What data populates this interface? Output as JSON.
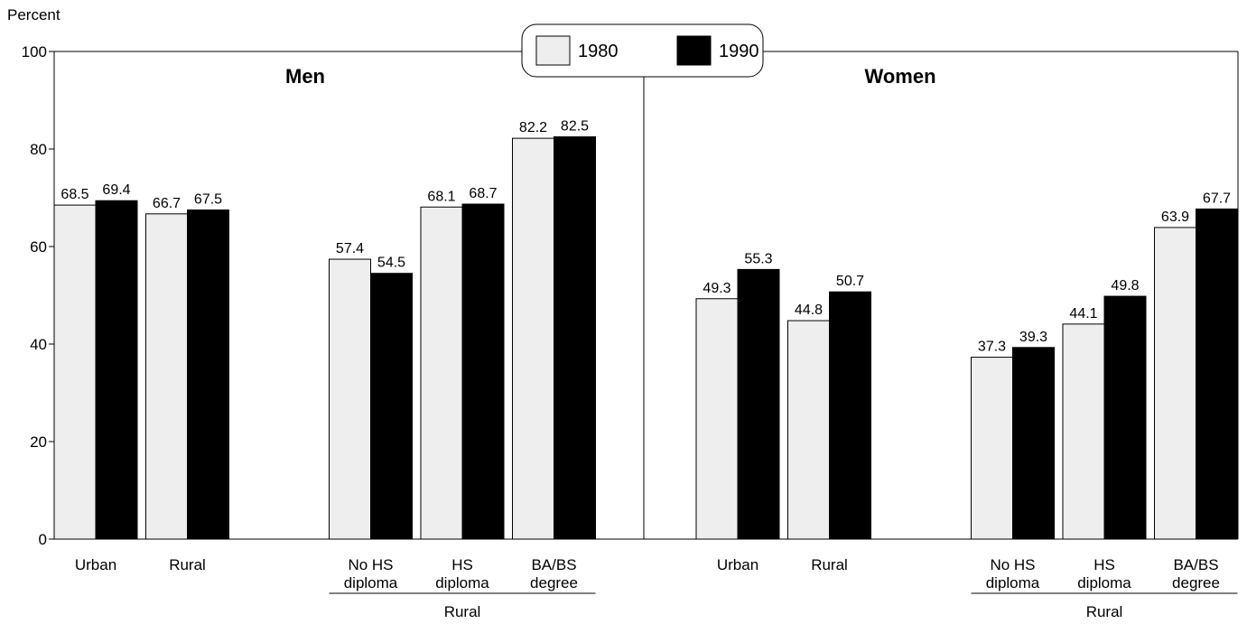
{
  "chart_data": [
    {
      "type": "bar",
      "title": "Men",
      "y_label": "Percent",
      "categories": [
        "Urban",
        "Rural",
        "No HS\ndiploma",
        "HS\ndiploma",
        "BA/BS\ndegree"
      ],
      "group_label": "Rural",
      "series": [
        {
          "name": "1980",
          "color": "#eeeeee",
          "values": [
            68.5,
            66.7,
            57.4,
            68.1,
            82.2
          ]
        },
        {
          "name": "1990",
          "color": "#000000",
          "values": [
            69.4,
            67.5,
            54.5,
            68.7,
            82.5
          ]
        }
      ],
      "ylim": [
        0,
        100
      ],
      "yticks": [
        0,
        20,
        40,
        60,
        80,
        100
      ]
    },
    {
      "type": "bar",
      "title": "Women",
      "categories": [
        "Urban",
        "Rural",
        "No HS\ndiploma",
        "HS\ndiploma",
        "BA/BS\ndegree"
      ],
      "group_label": "Rural",
      "series": [
        {
          "name": "1980",
          "color": "#eeeeee",
          "values": [
            49.3,
            44.8,
            37.3,
            44.1,
            63.9
          ]
        },
        {
          "name": "1990",
          "color": "#000000",
          "values": [
            55.3,
            50.7,
            39.3,
            49.8,
            67.7
          ]
        }
      ],
      "ylim": [
        0,
        100
      ]
    }
  ]
}
